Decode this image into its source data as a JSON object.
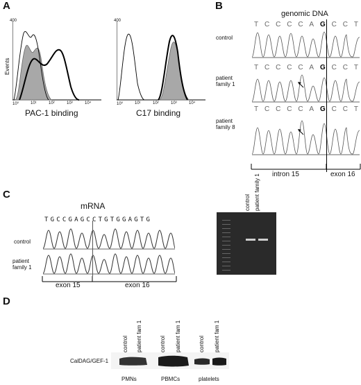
{
  "panels": {
    "A": {
      "letter": "A",
      "left": {
        "y_axis": "Events",
        "y_max": "400",
        "x_label": "PAC-1 binding",
        "ticks": [
          "10⁰",
          "10¹",
          "10²",
          "10³",
          "10⁴"
        ]
      },
      "right": {
        "y_max": "400",
        "x_label": "C17 binding",
        "ticks": [
          "10⁰",
          "10¹",
          "10²",
          "10³",
          "10⁴"
        ]
      }
    },
    "B": {
      "letter": "B",
      "title": "genomic DNA",
      "rows": [
        {
          "label": "control",
          "label2": "",
          "bases": [
            "T",
            "C",
            "C",
            "C",
            "C",
            "A",
            "G",
            "C",
            "C",
            "T"
          ]
        },
        {
          "label": "patient",
          "label2": "family 1",
          "bases": [
            "T",
            "C",
            "C",
            "C",
            "C",
            "A",
            "G",
            "C",
            "C",
            "T"
          ]
        },
        {
          "label": "patient",
          "label2": "family 8",
          "bases": [
            "T",
            "C",
            "C",
            "C",
            "C",
            "A",
            "G",
            "C",
            "C",
            "T"
          ]
        }
      ],
      "regions": [
        "intron 15",
        "exon 16"
      ]
    },
    "C": {
      "letter": "C",
      "title": "mRNA",
      "sequence": "TGCCGAGCCTGTGGAGTG",
      "rows": [
        {
          "label": "control",
          "label2": ""
        },
        {
          "label": "patient",
          "label2": "family 1"
        }
      ],
      "regions": [
        "exon 15",
        "exon 16"
      ],
      "gel_lanes": [
        "control",
        "patient family 1"
      ]
    },
    "D": {
      "letter": "D",
      "band_label": "CalDAG/GEF-1",
      "lanes": [
        "control",
        "patient fam 1",
        "control",
        "patient fam 1",
        "control",
        "patient fam 1"
      ],
      "groups": [
        "PMNs",
        "PBMCs",
        "platelets"
      ]
    }
  }
}
